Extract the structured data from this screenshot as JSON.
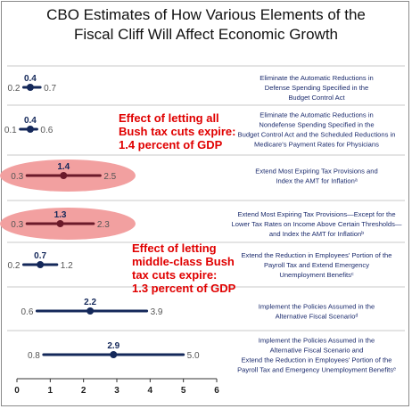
{
  "title_line1": "CBO Estimates of How Various Elements of the",
  "title_line2": "Fiscal Cliff Will Affect Economic Growth",
  "colors": {
    "range": "#14285a",
    "label_text": "#1a2a6c",
    "highlight": "#f2a0a0",
    "highlight_range": "#6b1a2a",
    "annotation": "#e00000",
    "separator": "#c8c8c8"
  },
  "annotations": [
    {
      "lines": [
        "Effect of letting all",
        "Bush tax cuts expire:",
        "1.4 percent of GDP"
      ]
    },
    {
      "lines": [
        "Effect of letting",
        "middle-class Bush",
        "tax cuts expire:",
        "1.3 percent of GDP"
      ]
    }
  ],
  "chart_data": {
    "type": "range",
    "title": "CBO Estimates of How Various Elements of the Fiscal Cliff Will Affect Economic Growth",
    "xlim": [
      0,
      6
    ],
    "x_ticks": [
      "0",
      "1",
      "2",
      "3",
      "4",
      "5",
      "6"
    ],
    "items": [
      {
        "label_lines": [
          "Eliminate the Automatic Reductions in",
          "Defense Spending Specified in the",
          "Budget Control Act"
        ],
        "low": 0.2,
        "mid": 0.4,
        "high": 0.7,
        "low_label": "0.2",
        "mid_label": "0.4",
        "high_label": "0.7",
        "highlighted": false
      },
      {
        "label_lines": [
          "Eliminate the Automatic Reductions in",
          "Nondefense Spending Specified in the",
          "Budget Control Act and the Scheduled Reductions in",
          "Medicare's Payment Rates for Physicians"
        ],
        "low": 0.1,
        "mid": 0.4,
        "high": 0.6,
        "low_label": "0.1",
        "mid_label": "0.4",
        "high_label": "0.6",
        "highlighted": false
      },
      {
        "label_lines": [
          "Extend Most Expiring Tax Provisions and",
          "Index the AMT for Inflationᵃ"
        ],
        "low": 0.3,
        "mid": 1.4,
        "high": 2.5,
        "low_label": "0.3",
        "mid_label": "1.4",
        "high_label": "2.5",
        "highlighted": true
      },
      {
        "label_lines": [
          "Extend Most Expiring Tax Provisions—Except for the",
          "Lower Tax Rates on Income Above Certain Thresholds—",
          "and Index the AMT for Inflationᵇ"
        ],
        "low": 0.3,
        "mid": 1.3,
        "high": 2.3,
        "low_label": "0.3",
        "mid_label": "1.3",
        "high_label": "2.3",
        "highlighted": true
      },
      {
        "label_lines": [
          "Extend the Reduction in Employees' Portion of the",
          "Payroll Tax and Extend Emergency",
          "Unemployment Benefitsᶜ"
        ],
        "low": 0.2,
        "mid": 0.7,
        "high": 1.2,
        "low_label": "0.2",
        "mid_label": "0.7",
        "high_label": "1.2",
        "highlighted": false
      },
      {
        "label_lines": [
          "Implement the Policies Assumed in the",
          "Alternative Fiscal Scenarioᵈ"
        ],
        "low": 0.6,
        "mid": 2.2,
        "high": 3.9,
        "low_label": "0.6",
        "mid_label": "2.2",
        "high_label": "3.9",
        "highlighted": false
      },
      {
        "label_lines": [
          "Implement the Policies Assumed in the",
          "Alternative Fiscal Scenario and",
          "Extend the Reduction in Employees' Portion of the",
          "Payroll Tax and Emergency Unemployment Benefitsᵉ"
        ],
        "low": 0.8,
        "mid": 2.9,
        "high": 5.0,
        "low_label": "0.8",
        "mid_label": "2.9",
        "high_label": "5.0",
        "highlighted": false
      }
    ]
  }
}
